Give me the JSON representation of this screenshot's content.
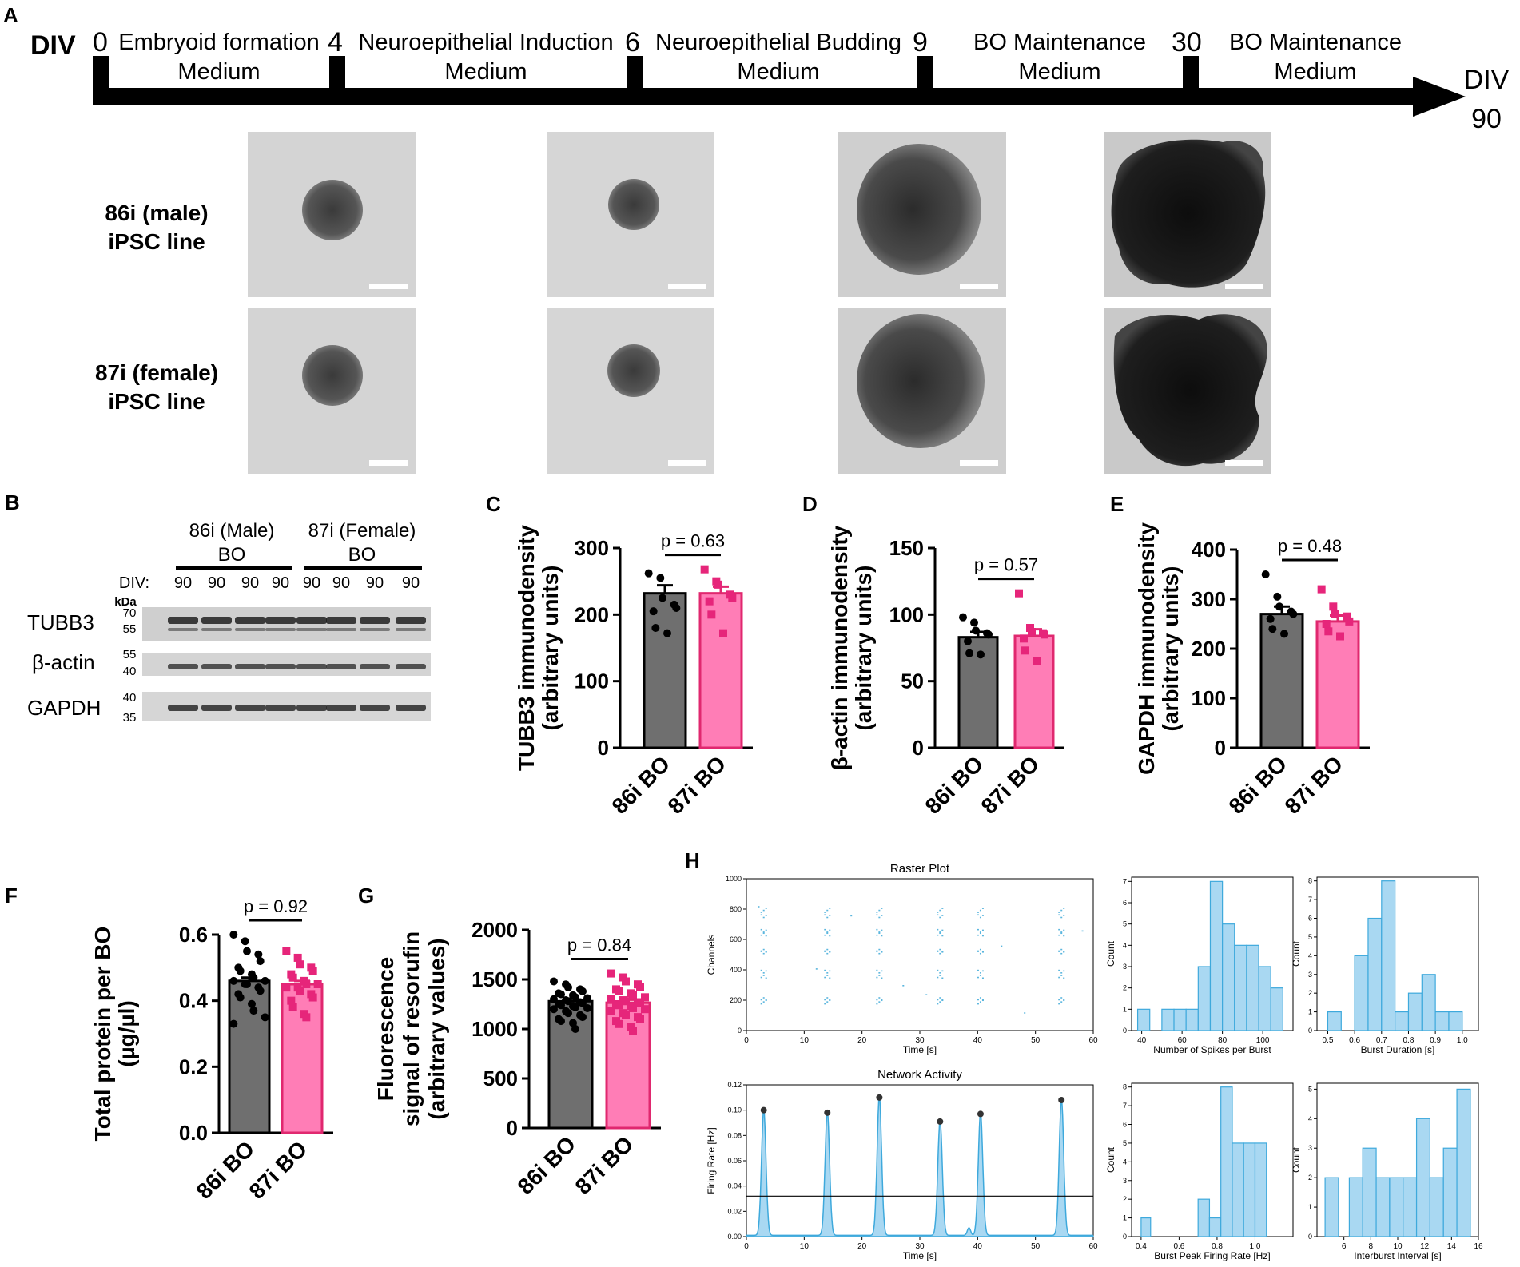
{
  "panel_labels": {
    "A": "A",
    "B": "B",
    "C": "C",
    "D": "D",
    "E": "E",
    "F": "F",
    "G": "G",
    "H": "H"
  },
  "timeline": {
    "div_label": "DIV",
    "days": [
      "0",
      "4",
      "6",
      "9",
      "30"
    ],
    "stages": [
      {
        "line1": "Embryoid formation",
        "line2": "Medium"
      },
      {
        "line1": "Neuroepithelial Induction",
        "line2": "Medium"
      },
      {
        "line1": "Neuroepithelial Budding",
        "line2": "Medium"
      },
      {
        "line1": "BO Maintenance",
        "line2": "Medium"
      },
      {
        "line1": "BO Maintenance",
        "line2": "Medium"
      }
    ],
    "end_label_line1": "DIV",
    "end_label_line2": "90"
  },
  "micrographs": {
    "rows": [
      {
        "line1": "86i (male)",
        "line2": "iPSC line"
      },
      {
        "line1": "87i (female)",
        "line2": "iPSC line"
      }
    ]
  },
  "western_blot": {
    "group1_line1": "86i (Male)",
    "group1_line2": "BO",
    "group2_line1": "87i (Female)",
    "group2_line2": "BO",
    "div_prefix": "DIV:",
    "lanes": [
      "90",
      "90",
      "90",
      "90",
      "90",
      "90",
      "90",
      "90"
    ],
    "kda_label": "kDa",
    "bands": [
      {
        "name": "TUBB3",
        "mw_top": "70",
        "mw_bottom": "55"
      },
      {
        "name": "β-actin",
        "mw_top": "55",
        "mw_bottom": "40"
      },
      {
        "name": "GAPDH",
        "mw_top": "40",
        "mw_bottom": "35"
      }
    ]
  },
  "colors": {
    "bo86": "#6f6f6f",
    "bo87": "#ff7db6",
    "bo87_dot": "#e6257a",
    "raster": "#5bb6de",
    "hist_fill": "#a9d8f2",
    "hist_edge": "#3ea9dc"
  },
  "chart_data": [
    {
      "id": "C",
      "type": "bar",
      "categories": [
        "86i BO",
        "87i BO"
      ],
      "values": [
        232,
        232
      ],
      "sem": [
        12,
        10
      ],
      "points": [
        [
          262,
          255,
          225,
          215,
          210,
          205,
          180,
          172
        ],
        [
          268,
          250,
          245,
          230,
          225,
          220,
          200,
          172
        ]
      ],
      "ylabel_line1": "TUBB3 immunodensity",
      "ylabel_line2": "(arbitrary units)",
      "ylim": [
        0,
        300
      ],
      "yticks": [
        "0",
        "100",
        "200",
        "300"
      ],
      "p_text": "p = 0.63"
    },
    {
      "id": "D",
      "type": "bar",
      "categories": [
        "86i BO",
        "87i BO"
      ],
      "values": [
        83,
        84
      ],
      "sem": [
        4,
        5
      ],
      "points": [
        [
          98,
          94,
          88,
          86,
          85,
          80,
          71,
          70
        ],
        [
          116,
          90,
          87,
          86,
          85,
          82,
          73,
          65
        ]
      ],
      "ylabel_line1": "β-actin immunodensity",
      "ylabel_line2": "(arbitrary units)",
      "ylim": [
        0,
        150
      ],
      "yticks": [
        "0",
        "50",
        "100",
        "150"
      ],
      "p_text": "p = 0.57"
    },
    {
      "id": "E",
      "type": "bar",
      "categories": [
        "86i BO",
        "87i BO"
      ],
      "values": [
        270,
        255
      ],
      "sem": [
        15,
        12
      ],
      "points": [
        [
          350,
          305,
          285,
          275,
          270,
          260,
          240,
          230
        ],
        [
          320,
          285,
          270,
          265,
          255,
          250,
          235,
          225
        ]
      ],
      "ylabel_line1": "GAPDH immunodensity",
      "ylabel_line2": "(arbitrary units)",
      "ylim": [
        0,
        400
      ],
      "yticks": [
        "0",
        "100",
        "200",
        "300",
        "400"
      ],
      "p_text": "p = 0.48"
    },
    {
      "id": "F",
      "type": "bar",
      "categories": [
        "86i BO",
        "87i BO"
      ],
      "values": [
        0.46,
        0.45
      ],
      "sem": [
        0.01,
        0.01
      ],
      "points": [
        [
          0.6,
          0.58,
          0.55,
          0.54,
          0.52,
          0.5,
          0.49,
          0.48,
          0.47,
          0.46,
          0.46,
          0.45,
          0.45,
          0.44,
          0.43,
          0.42,
          0.41,
          0.39,
          0.37,
          0.35,
          0.33
        ],
        [
          0.55,
          0.53,
          0.51,
          0.5,
          0.49,
          0.48,
          0.47,
          0.46,
          0.45,
          0.45,
          0.44,
          0.44,
          0.43,
          0.42,
          0.41,
          0.4,
          0.38,
          0.36,
          0.35
        ]
      ],
      "ylabel_line1": "Total protein per BO",
      "ylabel_line2": "(µg/µl)",
      "ylim": [
        0,
        0.6
      ],
      "yticks": [
        "0.0",
        "0.2",
        "0.4",
        "0.6"
      ],
      "p_text": "p = 0.92"
    },
    {
      "id": "G",
      "type": "bar",
      "categories": [
        "86i BO",
        "87i BO"
      ],
      "values": [
        1280,
        1265
      ],
      "sem": [
        25,
        30
      ],
      "points": [
        [
          1480,
          1450,
          1420,
          1400,
          1380,
          1360,
          1350,
          1340,
          1320,
          1310,
          1300,
          1290,
          1280,
          1270,
          1260,
          1250,
          1240,
          1230,
          1220,
          1210,
          1200,
          1180,
          1160,
          1140,
          1120,
          1100,
          1080,
          1060,
          1000
        ],
        [
          1560,
          1520,
          1480,
          1450,
          1420,
          1400,
          1380,
          1360,
          1340,
          1320,
          1300,
          1290,
          1280,
          1270,
          1260,
          1250,
          1240,
          1230,
          1210,
          1200,
          1180,
          1160,
          1140,
          1120,
          1100,
          1080,
          1050,
          1020,
          980
        ]
      ],
      "ylabel_line1": "Fluorescence",
      "ylabel_line2": "signal of resorufin",
      "ylabel_line3": "(arbitrary values)",
      "ylim": [
        0,
        2000
      ],
      "yticks": [
        "0",
        "500",
        "1000",
        "1500",
        "2000"
      ],
      "p_text": "p = 0.84"
    },
    {
      "id": "H-raster",
      "type": "scatter",
      "title": "Raster Plot",
      "xlabel": "Time [s]",
      "ylabel": "Channels",
      "xlim": [
        0,
        60
      ],
      "ylim": [
        0,
        1000
      ],
      "xticks": [
        "0",
        "10",
        "20",
        "30",
        "40",
        "50",
        "60"
      ],
      "yticks": [
        "0",
        "200",
        "400",
        "600",
        "800",
        "1000"
      ],
      "burst_times": [
        3,
        14,
        23,
        33.5,
        40.5,
        54.5
      ],
      "channels": [
        180,
        200,
        340,
        380,
        500,
        520,
        620,
        650,
        740,
        780
      ]
    },
    {
      "id": "H-network",
      "type": "line",
      "title": "Network Activity",
      "xlabel": "Time [s]",
      "ylabel": "Firing Rate [Hz]",
      "xlim": [
        0,
        60
      ],
      "ylim": [
        0,
        0.12
      ],
      "xticks": [
        "0",
        "10",
        "20",
        "30",
        "40",
        "50",
        "60"
      ],
      "yticks": [
        "0.00",
        "0.02",
        "0.04",
        "0.06",
        "0.08",
        "0.10",
        "0.12"
      ],
      "peaks": [
        [
          3,
          0.1
        ],
        [
          14,
          0.098
        ],
        [
          23,
          0.11
        ],
        [
          33.5,
          0.091
        ],
        [
          40.5,
          0.097
        ],
        [
          54.5,
          0.108
        ]
      ],
      "threshold": 0.032
    },
    {
      "id": "H-spikes",
      "type": "bar",
      "xlabel": "Number of Spikes per Burst",
      "ylabel": "Count",
      "xlim": [
        35,
        115
      ],
      "ylim": [
        0,
        7.2
      ],
      "xticks": [
        "40",
        "60",
        "80",
        "100"
      ],
      "yticks": [
        "0",
        "1",
        "2",
        "3",
        "4",
        "5",
        "6",
        "7"
      ],
      "bins": [
        [
          38,
          44,
          1
        ],
        [
          50,
          56,
          1
        ],
        [
          56,
          62,
          1
        ],
        [
          62,
          68,
          1
        ],
        [
          68,
          74,
          3
        ],
        [
          74,
          80,
          7
        ],
        [
          80,
          86,
          5
        ],
        [
          86,
          92,
          4
        ],
        [
          92,
          98,
          4
        ],
        [
          98,
          104,
          3
        ],
        [
          104,
          110,
          2
        ]
      ]
    },
    {
      "id": "H-duration",
      "type": "bar",
      "xlabel": "Burst Duration [s]",
      "ylabel": "Count",
      "xlim": [
        0.46,
        1.06
      ],
      "ylim": [
        0,
        8.2
      ],
      "xticks": [
        "0.5",
        "0.6",
        "0.7",
        "0.8",
        "0.9",
        "1.0"
      ],
      "yticks": [
        "0",
        "1",
        "2",
        "3",
        "4",
        "5",
        "6",
        "7",
        "8"
      ],
      "bins": [
        [
          0.5,
          0.55,
          1
        ],
        [
          0.6,
          0.65,
          4
        ],
        [
          0.65,
          0.7,
          6
        ],
        [
          0.7,
          0.75,
          8
        ],
        [
          0.75,
          0.8,
          1
        ],
        [
          0.8,
          0.85,
          2
        ],
        [
          0.85,
          0.9,
          3
        ],
        [
          0.9,
          0.95,
          1
        ],
        [
          0.95,
          1.0,
          1
        ]
      ]
    },
    {
      "id": "H-peakrate",
      "type": "bar",
      "xlabel": "Burst Peak Firing Rate [Hz]",
      "ylabel": "Count",
      "xlim": [
        0.35,
        1.2
      ],
      "ylim": [
        0,
        8.2
      ],
      "xticks": [
        "0.4",
        "0.6",
        "0.8",
        "1.0"
      ],
      "yticks": [
        "0",
        "1",
        "2",
        "3",
        "4",
        "5",
        "6",
        "7",
        "8"
      ],
      "bins": [
        [
          0.4,
          0.45,
          1
        ],
        [
          0.55,
          0.6,
          0
        ],
        [
          0.7,
          0.76,
          2
        ],
        [
          0.76,
          0.82,
          1
        ],
        [
          0.82,
          0.88,
          8
        ],
        [
          0.88,
          0.94,
          5
        ],
        [
          0.94,
          1.0,
          5
        ],
        [
          1.0,
          1.06,
          5
        ]
      ]
    },
    {
      "id": "H-interval",
      "type": "bar",
      "xlabel": "Interburst Interval [s]",
      "ylabel": "Count",
      "xlim": [
        4,
        16
      ],
      "ylim": [
        0,
        5.2
      ],
      "xticks": [
        "6",
        "8",
        "10",
        "12",
        "14",
        "16"
      ],
      "yticks": [
        "0",
        "1",
        "2",
        "3",
        "4",
        "5"
      ],
      "bins": [
        [
          4.6,
          5.6,
          2
        ],
        [
          6.4,
          7.4,
          2
        ],
        [
          7.4,
          8.4,
          3
        ],
        [
          8.4,
          9.4,
          2
        ],
        [
          9.4,
          10.4,
          2
        ],
        [
          10.4,
          11.4,
          2
        ],
        [
          11.4,
          12.4,
          4
        ],
        [
          12.4,
          13.4,
          2
        ],
        [
          13.4,
          14.4,
          3
        ],
        [
          14.4,
          15.4,
          5
        ]
      ]
    }
  ]
}
